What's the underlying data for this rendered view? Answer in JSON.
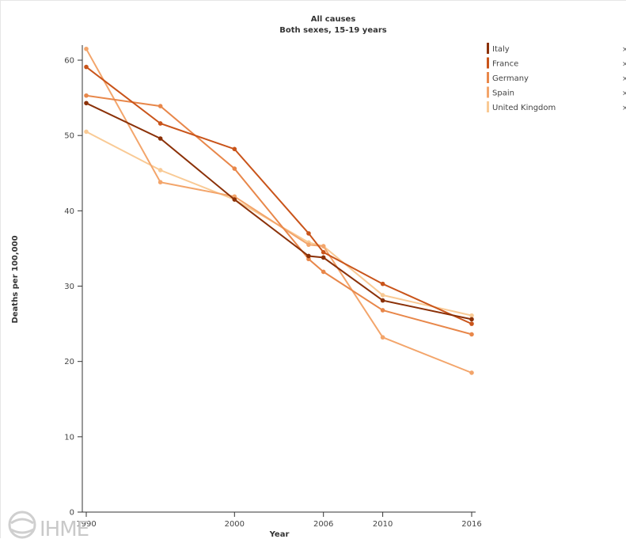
{
  "logo": {
    "text": "IHME"
  },
  "chart_data": {
    "type": "line",
    "title": "All causes",
    "subtitle": "Both sexes, 15-19 years",
    "xlabel": "Year",
    "ylabel": "Deaths per 100,000",
    "x": [
      1990,
      1995,
      2000,
      2005,
      2006,
      2010,
      2016
    ],
    "x_ticks": [
      1990,
      2000,
      2006,
      2010,
      2016
    ],
    "x_tick_labels": [
      "1990",
      "2000",
      "2006",
      "2010",
      "2016"
    ],
    "y_ticks": [
      0,
      10,
      20,
      30,
      40,
      50,
      60
    ],
    "y_tick_labels": [
      "0",
      "10",
      "20",
      "30",
      "40",
      "50",
      "60"
    ],
    "xlim": [
      1990,
      2016
    ],
    "ylim": [
      0,
      62
    ],
    "grid": false,
    "legend_position": "top-right",
    "legend_close_symbol": "×",
    "series": [
      {
        "name": "Italy",
        "color": "#8b3108",
        "values": [
          54.3,
          49.6,
          41.5,
          34.0,
          33.8,
          28.1,
          25.6
        ]
      },
      {
        "name": "France",
        "color": "#c9541a",
        "values": [
          59.1,
          51.6,
          48.2,
          37.0,
          34.5,
          30.3,
          25.0
        ]
      },
      {
        "name": "Germany",
        "color": "#e8874a",
        "values": [
          55.3,
          53.9,
          45.6,
          33.6,
          31.9,
          26.8,
          23.6
        ]
      },
      {
        "name": "Spain",
        "color": "#f3a56b",
        "values": [
          61.5,
          43.8,
          41.9,
          35.5,
          35.3,
          23.2,
          18.5
        ]
      },
      {
        "name": "United Kingdom",
        "color": "#f9ca95",
        "values": [
          50.5,
          45.4,
          41.5,
          35.8,
          35.3,
          28.8,
          26.1
        ]
      }
    ]
  }
}
